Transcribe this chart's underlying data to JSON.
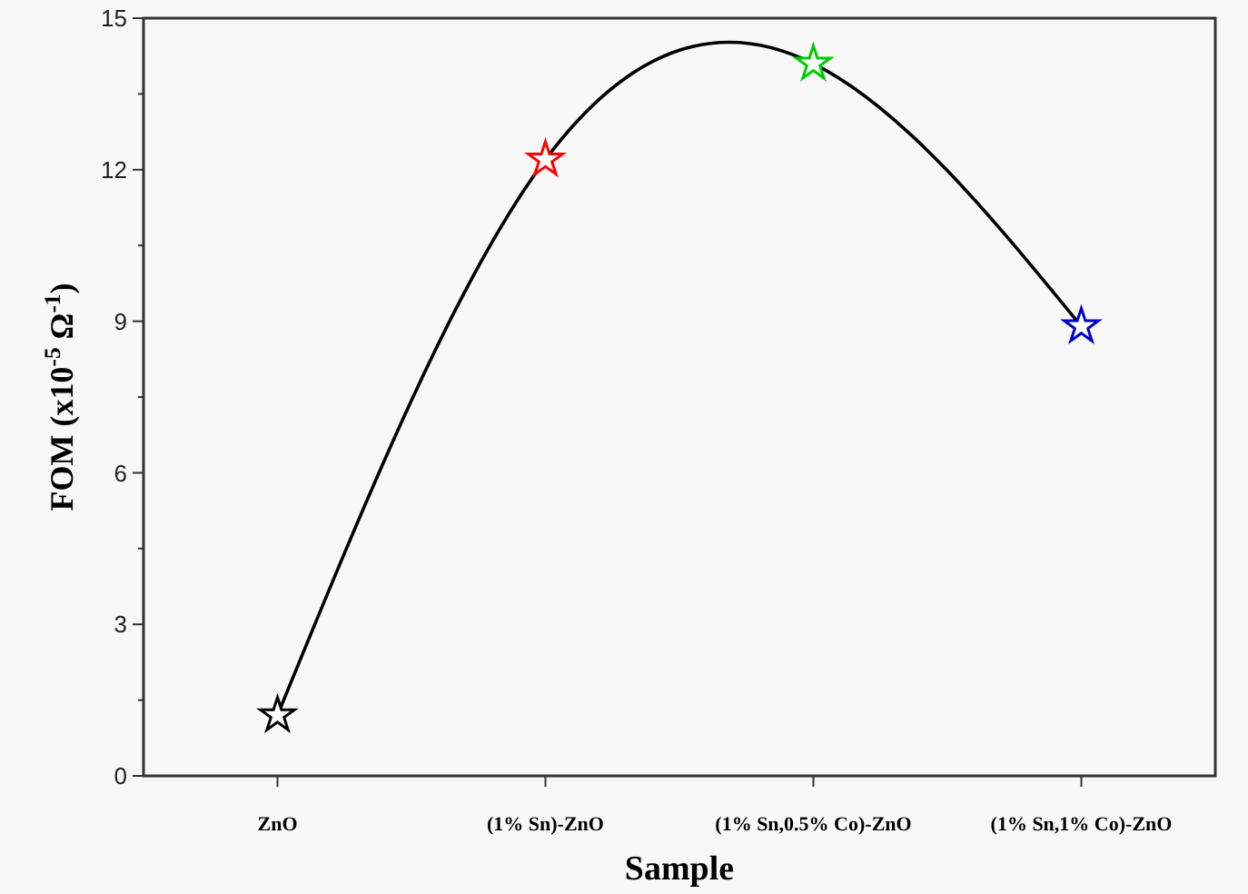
{
  "chart_data": {
    "type": "line",
    "xlabel": "Sample",
    "ylabel": "FOM (x10$^{-5}$ Ω$^{-1}$)",
    "categories": [
      "ZnO",
      "(1% Sn)-ZnO",
      "(1% Sn,0.5% Co)-ZnO",
      "(1% Sn,1% Co)-ZnO"
    ],
    "series": [
      {
        "color": "#000000",
        "colors": [
          "#000000",
          "#ff0000",
          "#00cc00",
          "#0000cc"
        ],
        "values": [
          1.2,
          12.2,
          14.1,
          8.9
        ]
      }
    ],
    "ylim": [
      0,
      15
    ],
    "yticks": [
      0,
      {
        "value": 1.5,
        "label": null
      },
      3,
      {
        "value": 4.5,
        "label": null
      },
      6,
      {
        "value": 7.5,
        "label": null
      },
      9,
      {
        "value": 10.5,
        "label": null
      },
      12,
      {
        "value": 13.5,
        "label": null
      },
      15
    ],
    "marker": "star",
    "line_style": "solid"
  }
}
